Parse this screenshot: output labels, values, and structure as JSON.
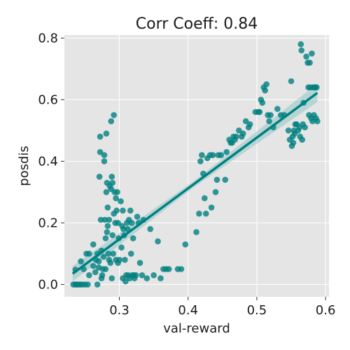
{
  "chart_data": {
    "type": "scatter",
    "title": "Corr Coeff: 0.84",
    "xlabel": "val-reward",
    "ylabel": "posdis",
    "xlim": [
      0.22,
      0.605
    ],
    "ylim": [
      -0.04,
      0.81
    ],
    "x_ticks": [
      0.3,
      0.4,
      0.5,
      0.6
    ],
    "x_tick_labels": [
      "0.3",
      "0.4",
      "0.5",
      "0.6"
    ],
    "y_ticks": [
      0.0,
      0.2,
      0.4,
      0.6,
      0.8
    ],
    "y_tick_labels": [
      "0.0",
      "0.2",
      "0.4",
      "0.6",
      "0.8"
    ],
    "grid": true,
    "background": "#e5e5e5",
    "grid_color": "#ffffff",
    "point_color": "#008080",
    "line_color": "#008080",
    "band_color": "#7fbfbf",
    "regression": {
      "x_start": 0.232,
      "y_start": 0.035,
      "x_end": 0.588,
      "y_end": 0.622,
      "band_start": 0.025,
      "band_mid": 0.01,
      "band_end": 0.03
    },
    "points": [
      [
        0.233,
        0.0
      ],
      [
        0.236,
        0.0
      ],
      [
        0.238,
        0.0
      ],
      [
        0.24,
        0.0
      ],
      [
        0.243,
        0.0
      ],
      [
        0.246,
        0.0
      ],
      [
        0.25,
        0.0
      ],
      [
        0.254,
        0.0
      ],
      [
        0.236,
        0.048
      ],
      [
        0.244,
        0.075
      ],
      [
        0.248,
        0.05
      ],
      [
        0.252,
        0.1
      ],
      [
        0.256,
        0.1
      ],
      [
        0.256,
        0.03
      ],
      [
        0.262,
        0.13
      ],
      [
        0.262,
        0.06
      ],
      [
        0.265,
        0.04
      ],
      [
        0.266,
        0.08
      ],
      [
        0.268,
        0.1
      ],
      [
        0.268,
        0.0
      ],
      [
        0.27,
        0.055
      ],
      [
        0.27,
        0.075
      ],
      [
        0.271,
        0.35
      ],
      [
        0.272,
        0.48
      ],
      [
        0.272,
        0.43
      ],
      [
        0.273,
        0.21
      ],
      [
        0.274,
        0.11
      ],
      [
        0.274,
        0.02
      ],
      [
        0.275,
        0.03
      ],
      [
        0.276,
        0.05
      ],
      [
        0.277,
        0.09
      ],
      [
        0.278,
        0.42
      ],
      [
        0.278,
        0.4
      ],
      [
        0.279,
        0.21
      ],
      [
        0.28,
        0.05
      ],
      [
        0.28,
        0.15
      ],
      [
        0.281,
        0.3
      ],
      [
        0.281,
        0.49
      ],
      [
        0.282,
        0.33
      ],
      [
        0.282,
        0.17
      ],
      [
        0.283,
        0.25
      ],
      [
        0.283,
        0.19
      ],
      [
        0.284,
        0.1
      ],
      [
        0.285,
        0.21
      ],
      [
        0.285,
        0.08
      ],
      [
        0.286,
        0.32
      ],
      [
        0.287,
        0.07
      ],
      [
        0.288,
        0.53
      ],
      [
        0.288,
        0.31
      ],
      [
        0.289,
        0.35
      ],
      [
        0.289,
        0.02
      ],
      [
        0.29,
        0.33
      ],
      [
        0.29,
        0.16
      ],
      [
        0.291,
        0.1
      ],
      [
        0.292,
        0.55
      ],
      [
        0.292,
        0.23
      ],
      [
        0.293,
        0.3
      ],
      [
        0.294,
        0.2
      ],
      [
        0.295,
        0.28
      ],
      [
        0.295,
        0.08
      ],
      [
        0.296,
        0.24
      ],
      [
        0.297,
        0.3
      ],
      [
        0.298,
        0.2
      ],
      [
        0.298,
        0.07
      ],
      [
        0.299,
        0.15
      ],
      [
        0.3,
        0.08
      ],
      [
        0.302,
        0.27
      ],
      [
        0.303,
        0.12
      ],
      [
        0.304,
        0.19
      ],
      [
        0.305,
        0.24
      ],
      [
        0.305,
        0.02
      ],
      [
        0.306,
        0.18
      ],
      [
        0.307,
        0.16
      ],
      [
        0.308,
        0.08
      ],
      [
        0.309,
        0.01
      ],
      [
        0.31,
        0.03
      ],
      [
        0.311,
        0.2
      ],
      [
        0.312,
        0.18
      ],
      [
        0.313,
        0.03
      ],
      [
        0.314,
        0.21
      ],
      [
        0.315,
        0.02
      ],
      [
        0.316,
        0.24
      ],
      [
        0.317,
        0.1
      ],
      [
        0.318,
        0.2
      ],
      [
        0.319,
        0.03
      ],
      [
        0.32,
        0.15
      ],
      [
        0.321,
        0.03
      ],
      [
        0.322,
        0.02
      ],
      [
        0.324,
        0.03
      ],
      [
        0.326,
        0.22
      ],
      [
        0.328,
        0.2
      ],
      [
        0.33,
        0.07
      ],
      [
        0.333,
        0.03
      ],
      [
        0.335,
        0.21
      ],
      [
        0.34,
        0.02
      ],
      [
        0.345,
        0.18
      ],
      [
        0.35,
        0.03
      ],
      [
        0.356,
        0.14
      ],
      [
        0.36,
        0.02
      ],
      [
        0.364,
        0.05
      ],
      [
        0.368,
        0.05
      ],
      [
        0.372,
        0.05
      ],
      [
        0.385,
        0.05
      ],
      [
        0.39,
        0.05
      ],
      [
        0.396,
        0.13
      ],
      [
        0.412,
        0.17
      ],
      [
        0.416,
        0.23
      ],
      [
        0.418,
        0.4
      ],
      [
        0.42,
        0.42
      ],
      [
        0.422,
        0.36
      ],
      [
        0.424,
        0.28
      ],
      [
        0.426,
        0.23
      ],
      [
        0.428,
        0.41
      ],
      [
        0.432,
        0.42
      ],
      [
        0.434,
        0.25
      ],
      [
        0.436,
        0.42
      ],
      [
        0.44,
        0.3
      ],
      [
        0.442,
        0.34
      ],
      [
        0.444,
        0.42
      ],
      [
        0.448,
        0.42
      ],
      [
        0.454,
        0.34
      ],
      [
        0.456,
        0.43
      ],
      [
        0.46,
        0.47
      ],
      [
        0.462,
        0.46
      ],
      [
        0.464,
        0.46
      ],
      [
        0.466,
        0.48
      ],
      [
        0.468,
        0.47
      ],
      [
        0.47,
        0.48
      ],
      [
        0.474,
        0.5
      ],
      [
        0.478,
        0.48
      ],
      [
        0.48,
        0.49
      ],
      [
        0.484,
        0.53
      ],
      [
        0.488,
        0.51
      ],
      [
        0.49,
        0.52
      ],
      [
        0.498,
        0.56
      ],
      [
        0.502,
        0.56
      ],
      [
        0.504,
        0.56
      ],
      [
        0.506,
        0.6
      ],
      [
        0.508,
        0.59
      ],
      [
        0.51,
        0.64
      ],
      [
        0.512,
        0.63
      ],
      [
        0.514,
        0.65
      ],
      [
        0.516,
        0.55
      ],
      [
        0.518,
        0.53
      ],
      [
        0.52,
        0.55
      ],
      [
        0.524,
        0.51
      ],
      [
        0.53,
        0.57
      ],
      [
        0.535,
        0.55
      ],
      [
        0.54,
        0.55
      ],
      [
        0.546,
        0.5
      ],
      [
        0.548,
        0.47
      ],
      [
        0.55,
        0.66
      ],
      [
        0.551,
        0.45
      ],
      [
        0.552,
        0.48
      ],
      [
        0.553,
        0.46
      ],
      [
        0.554,
        0.5
      ],
      [
        0.555,
        0.49
      ],
      [
        0.556,
        0.52
      ],
      [
        0.558,
        0.52
      ],
      [
        0.56,
        0.5
      ],
      [
        0.562,
        0.51
      ],
      [
        0.563,
        0.48
      ],
      [
        0.564,
        0.78
      ],
      [
        0.565,
        0.76
      ],
      [
        0.566,
        0.47
      ],
      [
        0.567,
        0.52
      ],
      [
        0.568,
        0.59
      ],
      [
        0.57,
        0.51
      ],
      [
        0.572,
        0.74
      ],
      [
        0.574,
        0.72
      ],
      [
        0.575,
        0.64
      ],
      [
        0.576,
        0.55
      ],
      [
        0.577,
        0.72
      ],
      [
        0.578,
        0.64
      ],
      [
        0.579,
        0.54
      ],
      [
        0.58,
        0.75
      ],
      [
        0.581,
        0.53
      ],
      [
        0.582,
        0.64
      ],
      [
        0.583,
        0.55
      ],
      [
        0.584,
        0.64
      ],
      [
        0.585,
        0.64
      ],
      [
        0.586,
        0.54
      ],
      [
        0.587,
        0.64
      ],
      [
        0.588,
        0.53
      ]
    ]
  }
}
